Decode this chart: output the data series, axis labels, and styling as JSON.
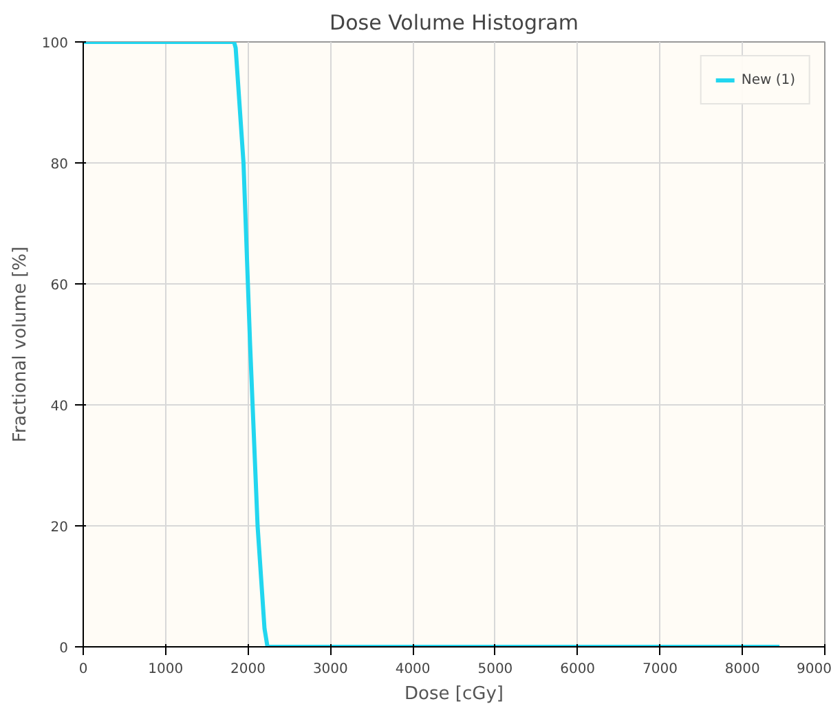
{
  "chart_data": {
    "type": "line",
    "title": "Dose Volume Histogram",
    "xlabel": "Dose [cGy]",
    "ylabel": "Fractional volume [%]",
    "series": [
      {
        "name": "New (1)",
        "color": "#22d6ef",
        "x": [
          0,
          1830,
          1850,
          1945,
          2025,
          2116,
          2200,
          2236,
          8450
        ],
        "values": [
          100,
          100,
          99,
          80,
          50,
          20,
          3,
          0,
          0
        ]
      }
    ],
    "xlim": [
      0,
      9000
    ],
    "xticks": [
      0,
      1000,
      2000,
      3000,
      4000,
      5000,
      6000,
      7000,
      8000,
      9000
    ],
    "ylim": [
      0,
      100
    ],
    "yticks": [
      0,
      20,
      40,
      60,
      80,
      100
    ],
    "grid": true,
    "legend": "top right",
    "marker": "none",
    "line_style": "solid"
  }
}
